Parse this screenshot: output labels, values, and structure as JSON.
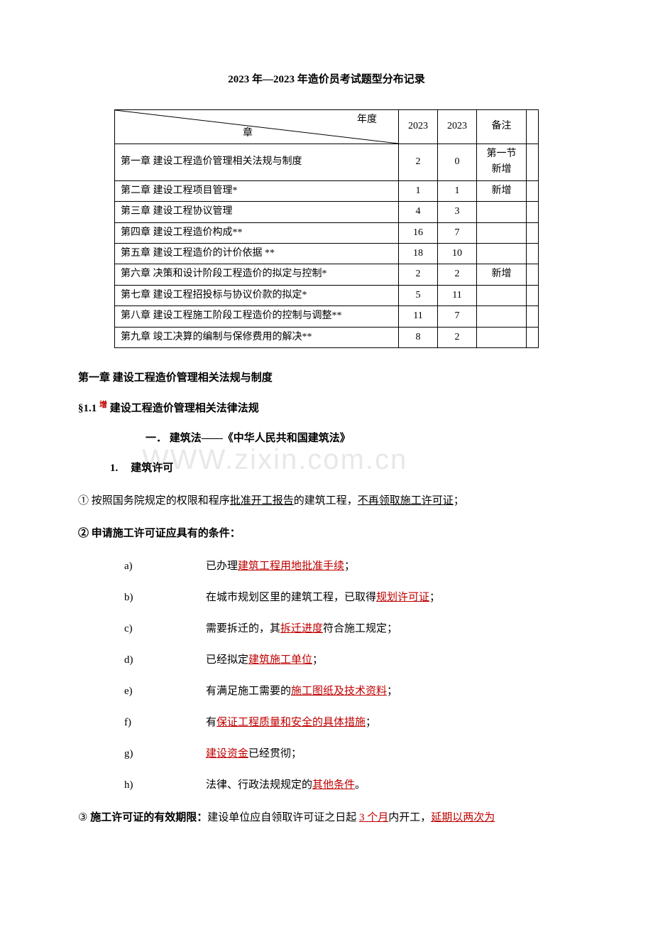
{
  "title": "2023 年—2023 年造价员考试题型分布记录",
  "watermark": "WWW.zixin.com.cn",
  "table": {
    "header": {
      "diag_top": "年度",
      "diag_bottom": "章",
      "year1": "2023",
      "year2": "2023",
      "note": "备注"
    },
    "rows": [
      {
        "ch": "第一章  建设工程造价管理相关法规与制度",
        "y1": "2",
        "y2": "0",
        "note": "第一节新增"
      },
      {
        "ch": "第二章  建设工程项目管理*",
        "y1": "1",
        "y2": "1",
        "note": "新增"
      },
      {
        "ch": "第三章  建设工程协议管理",
        "y1": "4",
        "y2": "3",
        "note": ""
      },
      {
        "ch": "第四章  建设工程造价构成**",
        "y1": "16",
        "y2": "7",
        "note": ""
      },
      {
        "ch": "第五章  建设工程造价的计价依据  **",
        "y1": "18",
        "y2": "10",
        "note": ""
      },
      {
        "ch": "第六章  决策和设计阶段工程造价的拟定与控制*",
        "y1": "2",
        "y2": "2",
        "note": "新增"
      },
      {
        "ch": "第七章  建设工程招投标与协议价款的拟定*",
        "y1": "5",
        "y2": "11",
        "note": ""
      },
      {
        "ch": "第八章  建设工程施工阶段工程造价的控制与调整**",
        "y1": "11",
        "y2": "7",
        "note": ""
      },
      {
        "ch": "第九章  竣工决算的编制与保修费用的解决**",
        "y1": "8",
        "y2": "2",
        "note": ""
      }
    ]
  },
  "h1": "第一章    建设工程造价管理相关法规与制度",
  "h2_prefix": "§1.1 ",
  "h2_add": "增",
  "h2_text": " 建设工程造价管理相关法律法规",
  "h3": "一．  建筑法——《中华人民共和国建筑法》",
  "item1_num": "1.",
  "item1_text": "建筑许可",
  "p1_a": "①  按照国务院规定的权限和程序",
  "p1_u1": "批准开工报告",
  "p1_b": "的建筑工程，",
  "p1_u2": "不再领取施工许可证",
  "p1_c": "；",
  "p2": "②  申请施工许可证应具有的条件：",
  "subs": [
    {
      "l": "a)",
      "pre": "已办理",
      "red": "建筑工程用地批准手续",
      "post": "；"
    },
    {
      "l": "b)",
      "pre": "在城市规划区里的建筑工程，已取得",
      "red": "规划许可证",
      "post": "；"
    },
    {
      "l": "c)",
      "pre": "需要拆迁的，其",
      "red": "拆迁进度",
      "post": "符合施工规定；"
    },
    {
      "l": "d)",
      "pre": "已经拟定",
      "red": "建筑施工单位",
      "post": "；"
    },
    {
      "l": "e)",
      "pre": "有满足施工需要的",
      "red": "施工图纸及技术资料",
      "post": "；"
    },
    {
      "l": "f)",
      "pre": "有",
      "red": "保证工程质量和安全的具体措施",
      "post": "；"
    },
    {
      "l": "g)",
      "pre": "",
      "red": "建设资金",
      "post": "已经贯彻；"
    },
    {
      "l": "h)",
      "pre": "法律、行政法规规定的",
      "red": "其他条件",
      "post": "。"
    }
  ],
  "p3_a": "③  ",
  "p3_bold": "施工许可证的有效期限：",
  "p3_b": "建设单位应自领取许可证之日起 ",
  "p3_red1": "3 个月",
  "p3_c": "内开工，",
  "p3_red2": "延期以两次为"
}
